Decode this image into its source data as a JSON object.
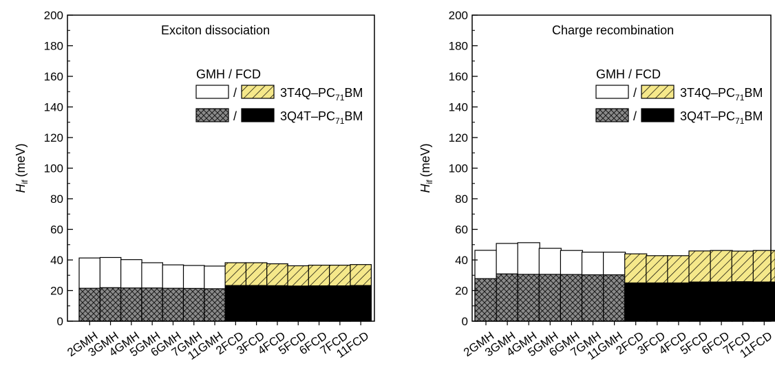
{
  "chart_data": [
    {
      "type": "bar",
      "title": "Exciton dissociation",
      "ylabel_symbol": "H",
      "ylabel_sub": "if",
      "ylabel_unit": "(meV)",
      "ylim": [
        0,
        200
      ],
      "yticks": [
        "0",
        "20",
        "40",
        "60",
        "80",
        "100",
        "120",
        "140",
        "160",
        "180",
        "200"
      ],
      "categories": [
        "2GMH",
        "3GMH",
        "4GMH",
        "5GMH",
        "6GMH",
        "7GMH",
        "11GMH",
        "2FCD",
        "3FCD",
        "4FCD",
        "5FCD",
        "6FCD",
        "7FCD",
        "11FCD"
      ],
      "legend_title": "GMH / FCD",
      "series": [
        {
          "name": "3T4Q–PC71BM",
          "values": [
            41.3,
            41.6,
            40.2,
            38.2,
            36.8,
            36.4,
            36.0,
            38.2,
            38.2,
            37.5,
            36.2,
            36.6,
            36.6,
            37.0
          ]
        },
        {
          "name": "3Q4T–PC71BM",
          "values": [
            21.5,
            21.9,
            21.7,
            21.7,
            21.5,
            21.4,
            21.2,
            23.3,
            23.3,
            23.2,
            23.0,
            23.1,
            23.1,
            23.3
          ]
        }
      ]
    },
    {
      "type": "bar",
      "title": "Charge recombination",
      "ylabel_symbol": "H",
      "ylabel_sub": "if",
      "ylabel_unit": "(meV)",
      "ylim": [
        0,
        200
      ],
      "yticks": [
        "0",
        "20",
        "40",
        "60",
        "80",
        "100",
        "120",
        "140",
        "160",
        "180",
        "200"
      ],
      "categories": [
        "2GMH",
        "3GMH",
        "4GMH",
        "5GMH",
        "6GMH",
        "7GMH",
        "11GMH",
        "2FCD",
        "3FCD",
        "4FCD",
        "5FCD",
        "6FCD",
        "7FCD",
        "11FCD"
      ],
      "legend_title": "GMH / FCD",
      "series": [
        {
          "name": "3T4Q–PC71BM",
          "values": [
            46.3,
            50.8,
            51.3,
            47.6,
            46.2,
            45.1,
            45.1,
            44.0,
            42.8,
            42.8,
            45.9,
            46.2,
            45.8,
            46.2
          ]
        },
        {
          "name": "3Q4T–PC71BM",
          "values": [
            27.8,
            30.9,
            30.6,
            30.6,
            30.5,
            30.3,
            30.3,
            25.0,
            25.0,
            25.0,
            25.6,
            25.6,
            25.8,
            25.6
          ]
        }
      ]
    }
  ],
  "legend": {
    "separator": "/",
    "series1_prefix": "3T4Q–PC",
    "series1_sub": "71",
    "series1_suffix": "BM",
    "series2_prefix": "3Q4T–PC",
    "series2_sub": "71",
    "series2_suffix": "BM"
  },
  "colors": {
    "hatch_yellow": "#f5e88a",
    "cross_gray": "#8a8a8a",
    "black": "#000000",
    "white": "#ffffff"
  }
}
